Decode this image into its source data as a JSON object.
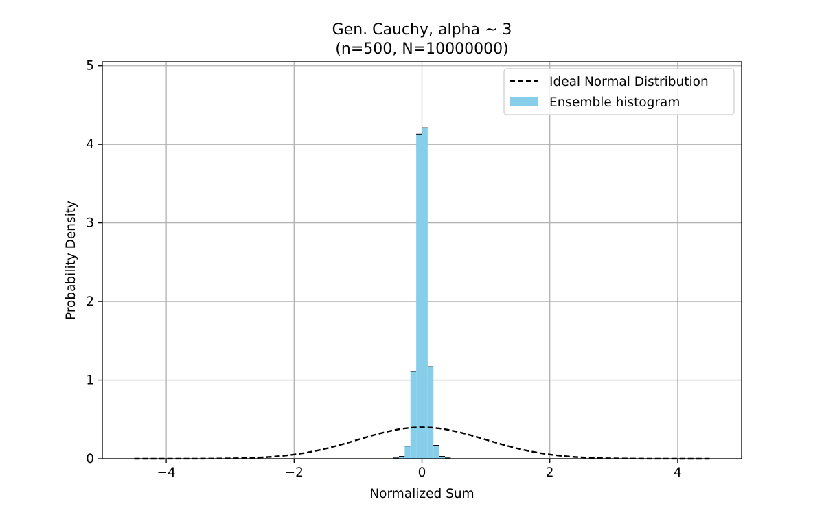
{
  "chart_data": {
    "type": "bar",
    "title": "Gen. Cauchy, alpha ~ 3",
    "subtitle": "(n=500, N=10000000)",
    "xlabel": "Normalized Sum",
    "ylabel": "Probability Density",
    "xlim": [
      -5,
      5
    ],
    "ylim": [
      0,
      5.05
    ],
    "xticks": [
      -4,
      -2,
      0,
      2,
      4
    ],
    "xtick_labels": [
      "−4",
      "−2",
      "0",
      "2",
      "4"
    ],
    "yticks": [
      0,
      1,
      2,
      3,
      4,
      5
    ],
    "ytick_labels": [
      "0",
      "1",
      "2",
      "3",
      "4",
      "5"
    ],
    "grid": true,
    "legend_position": "top-right",
    "histogram": {
      "name": "Ensemble histogram",
      "color": "#87ceeb",
      "edge_color": "#000000",
      "bin_width": 0.09,
      "bins": [
        {
          "x0": -0.45,
          "x1": -0.36,
          "density": 0.01
        },
        {
          "x0": -0.36,
          "x1": -0.27,
          "density": 0.03
        },
        {
          "x0": -0.27,
          "x1": -0.18,
          "density": 0.16
        },
        {
          "x0": -0.18,
          "x1": -0.09,
          "density": 1.11
        },
        {
          "x0": -0.09,
          "x1": 0.0,
          "density": 4.13
        },
        {
          "x0": 0.0,
          "x1": 0.09,
          "density": 4.21
        },
        {
          "x0": 0.09,
          "x1": 0.18,
          "density": 1.17
        },
        {
          "x0": 0.18,
          "x1": 0.27,
          "density": 0.17
        },
        {
          "x0": 0.27,
          "x1": 0.36,
          "density": 0.03
        },
        {
          "x0": 0.36,
          "x1": 0.45,
          "density": 0.01
        }
      ]
    },
    "normal_curve": {
      "name": "Ideal Normal Distribution",
      "color": "#000000",
      "line_style": "dashed",
      "mean": 0,
      "std": 1,
      "x_range": [
        -4.5,
        4.5
      ]
    },
    "legend": [
      {
        "label": "Ideal Normal Distribution",
        "kind": "dashed-line"
      },
      {
        "label": "Ensemble histogram",
        "kind": "patch"
      }
    ]
  },
  "colors": {
    "bar_fill": "#87ceeb",
    "grid": "#b0b0b0",
    "axes": "#000000"
  }
}
